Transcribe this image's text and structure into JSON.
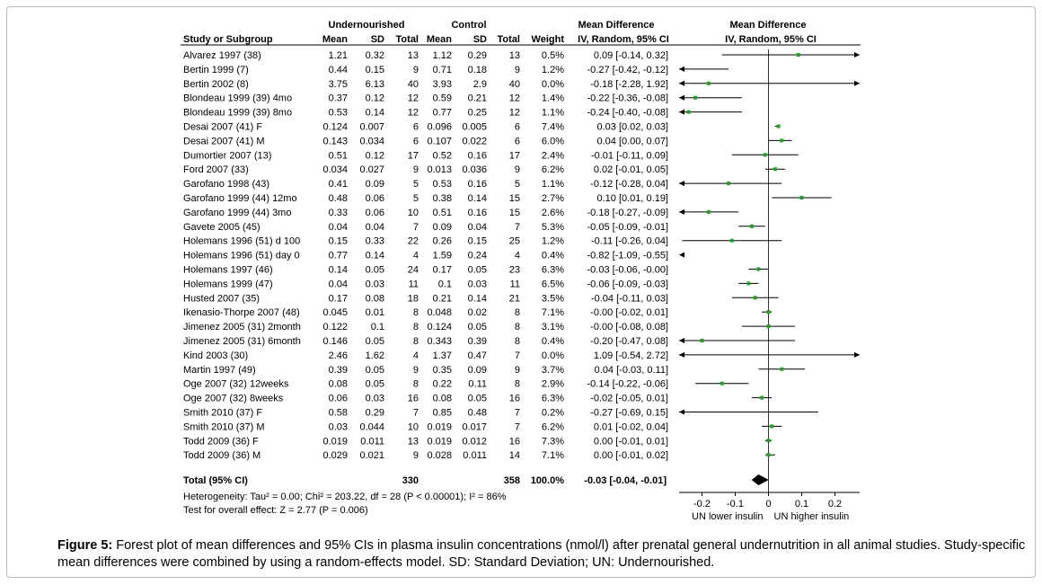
{
  "chart_data": {
    "type": "forest",
    "headers": {
      "group1": "Undernourished",
      "group2": "Control",
      "md_top": "Mean Difference",
      "md_sub": "IV, Random, 95% CI",
      "study": "Study or Subgroup",
      "mean": "Mean",
      "sd": "SD",
      "total": "Total",
      "weight": "Weight"
    },
    "studies": [
      {
        "name": "Alvarez 1997 (38)",
        "m1": "1.21",
        "sd1": "0.32",
        "n1": "13",
        "m2": "1.12",
        "sd2": "0.29",
        "n2": "13",
        "weight": "0.5%",
        "ci_text": "0.09 [-0.14, 0.32]",
        "md": 0.09,
        "lo": -0.14,
        "hi": 0.32
      },
      {
        "name": "Bertin 1999 (7)",
        "m1": "0.44",
        "sd1": "0.15",
        "n1": "9",
        "m2": "0.71",
        "sd2": "0.18",
        "n2": "9",
        "weight": "1.2%",
        "ci_text": "-0.27 [-0.42, -0.12]",
        "md": -0.27,
        "lo": -0.42,
        "hi": -0.12
      },
      {
        "name": "Bertin 2002 (8)",
        "m1": "3.75",
        "sd1": "6.13",
        "n1": "40",
        "m2": "3.93",
        "sd2": "2.9",
        "n2": "40",
        "weight": "0.0%",
        "ci_text": "-0.18 [-2.28, 1.92]",
        "md": -0.18,
        "lo": -2.28,
        "hi": 1.92
      },
      {
        "name": "Blondeau 1999 (39) 4mo",
        "m1": "0.37",
        "sd1": "0.12",
        "n1": "12",
        "m2": "0.59",
        "sd2": "0.21",
        "n2": "12",
        "weight": "1.4%",
        "ci_text": "-0.22 [-0.36, -0.08]",
        "md": -0.22,
        "lo": -0.36,
        "hi": -0.08
      },
      {
        "name": "Blondeau 1999 (39) 8mo",
        "m1": "0.53",
        "sd1": "0.14",
        "n1": "12",
        "m2": "0.77",
        "sd2": "0.25",
        "n2": "12",
        "weight": "1.1%",
        "ci_text": "-0.24 [-0.40, -0.08]",
        "md": -0.24,
        "lo": -0.4,
        "hi": -0.08
      },
      {
        "name": "Desai 2007 (41) F",
        "m1": "0.124",
        "sd1": "0.007",
        "n1": "6",
        "m2": "0.096",
        "sd2": "0.005",
        "n2": "6",
        "weight": "7.4%",
        "ci_text": "0.03 [0.02, 0.03]",
        "md": 0.03,
        "lo": 0.02,
        "hi": 0.03
      },
      {
        "name": "Desai 2007 (41) M",
        "m1": "0.143",
        "sd1": "0.034",
        "n1": "6",
        "m2": "0.107",
        "sd2": "0.022",
        "n2": "6",
        "weight": "6.0%",
        "ci_text": "0.04 [0.00, 0.07]",
        "md": 0.04,
        "lo": 0.0,
        "hi": 0.07
      },
      {
        "name": "Dumortier 2007 (13)",
        "m1": "0.51",
        "sd1": "0.12",
        "n1": "17",
        "m2": "0.52",
        "sd2": "0.16",
        "n2": "17",
        "weight": "2.4%",
        "ci_text": "-0.01 [-0.11, 0.09]",
        "md": -0.01,
        "lo": -0.11,
        "hi": 0.09
      },
      {
        "name": "Ford 2007 (33)",
        "m1": "0.034",
        "sd1": "0.027",
        "n1": "9",
        "m2": "0.013",
        "sd2": "0.036",
        "n2": "9",
        "weight": "6.2%",
        "ci_text": "0.02 [-0.01, 0.05]",
        "md": 0.02,
        "lo": -0.01,
        "hi": 0.05
      },
      {
        "name": "Garofano 1998 (43)",
        "m1": "0.41",
        "sd1": "0.09",
        "n1": "5",
        "m2": "0.53",
        "sd2": "0.16",
        "n2": "5",
        "weight": "1.1%",
        "ci_text": "-0.12 [-0.28, 0.04]",
        "md": -0.12,
        "lo": -0.28,
        "hi": 0.04
      },
      {
        "name": "Garofano 1999 (44) 12mo",
        "m1": "0.48",
        "sd1": "0.06",
        "n1": "5",
        "m2": "0.38",
        "sd2": "0.14",
        "n2": "15",
        "weight": "2.7%",
        "ci_text": "0.10 [0.01, 0.19]",
        "md": 0.1,
        "lo": 0.01,
        "hi": 0.19
      },
      {
        "name": "Garofano 1999 (44) 3mo",
        "m1": "0.33",
        "sd1": "0.06",
        "n1": "10",
        "m2": "0.51",
        "sd2": "0.16",
        "n2": "15",
        "weight": "2.6%",
        "ci_text": "-0.18 [-0.27, -0.09]",
        "md": -0.18,
        "lo": -0.27,
        "hi": -0.09
      },
      {
        "name": "Gavete 2005 (45)",
        "m1": "0.04",
        "sd1": "0.04",
        "n1": "7",
        "m2": "0.09",
        "sd2": "0.04",
        "n2": "7",
        "weight": "5.3%",
        "ci_text": "-0.05 [-0.09, -0.01]",
        "md": -0.05,
        "lo": -0.09,
        "hi": -0.01
      },
      {
        "name": "Holemans 1996 (51) d 100",
        "m1": "0.15",
        "sd1": "0.33",
        "n1": "22",
        "m2": "0.26",
        "sd2": "0.15",
        "n2": "25",
        "weight": "1.2%",
        "ci_text": "-0.11 [-0.26, 0.04]",
        "md": -0.11,
        "lo": -0.26,
        "hi": 0.04
      },
      {
        "name": "Holemans 1996 (51) day 0",
        "m1": "0.77",
        "sd1": "0.14",
        "n1": "4",
        "m2": "1.59",
        "sd2": "0.24",
        "n2": "4",
        "weight": "0.4%",
        "ci_text": "-0.82 [-1.09, -0.55]",
        "md": -0.82,
        "lo": -1.09,
        "hi": -0.55
      },
      {
        "name": "Holemans 1997 (46)",
        "m1": "0.14",
        "sd1": "0.05",
        "n1": "24",
        "m2": "0.17",
        "sd2": "0.05",
        "n2": "23",
        "weight": "6.3%",
        "ci_text": "-0.03 [-0.06, -0.00]",
        "md": -0.03,
        "lo": -0.06,
        "hi": -0.0
      },
      {
        "name": "Holemans 1999 (47)",
        "m1": "0.04",
        "sd1": "0.03",
        "n1": "11",
        "m2": "0.1",
        "sd2": "0.03",
        "n2": "11",
        "weight": "6.5%",
        "ci_text": "-0.06 [-0.09, -0.03]",
        "md": -0.06,
        "lo": -0.09,
        "hi": -0.03
      },
      {
        "name": "Husted 2007 (35)",
        "m1": "0.17",
        "sd1": "0.08",
        "n1": "18",
        "m2": "0.21",
        "sd2": "0.14",
        "n2": "21",
        "weight": "3.5%",
        "ci_text": "-0.04 [-0.11, 0.03]",
        "md": -0.04,
        "lo": -0.11,
        "hi": 0.03
      },
      {
        "name": "Ikenasio-Thorpe 2007 (48)",
        "m1": "0.045",
        "sd1": "0.01",
        "n1": "8",
        "m2": "0.048",
        "sd2": "0.02",
        "n2": "8",
        "weight": "7.1%",
        "ci_text": "-0.00 [-0.02, 0.01]",
        "md": -0.0,
        "lo": -0.02,
        "hi": 0.01
      },
      {
        "name": "Jimenez 2005 (31) 2month",
        "m1": "0.122",
        "sd1": "0.1",
        "n1": "8",
        "m2": "0.124",
        "sd2": "0.05",
        "n2": "8",
        "weight": "3.1%",
        "ci_text": "-0.00 [-0.08, 0.08]",
        "md": -0.0,
        "lo": -0.08,
        "hi": 0.08
      },
      {
        "name": "Jimenez 2005 (31) 6month",
        "m1": "0.146",
        "sd1": "0.05",
        "n1": "8",
        "m2": "0.343",
        "sd2": "0.39",
        "n2": "8",
        "weight": "0.4%",
        "ci_text": "-0.20 [-0.47, 0.08]",
        "md": -0.2,
        "lo": -0.47,
        "hi": 0.08
      },
      {
        "name": "Kind 2003 (30)",
        "m1": "2.46",
        "sd1": "1.62",
        "n1": "4",
        "m2": "1.37",
        "sd2": "0.47",
        "n2": "7",
        "weight": "0.0%",
        "ci_text": "1.09 [-0.54, 2.72]",
        "md": 1.09,
        "lo": -0.54,
        "hi": 2.72
      },
      {
        "name": "Martin 1997 (49)",
        "m1": "0.39",
        "sd1": "0.05",
        "n1": "9",
        "m2": "0.35",
        "sd2": "0.09",
        "n2": "9",
        "weight": "3.7%",
        "ci_text": "0.04 [-0.03, 0.11]",
        "md": 0.04,
        "lo": -0.03,
        "hi": 0.11
      },
      {
        "name": "Oge 2007 (32) 12weeks",
        "m1": "0.08",
        "sd1": "0.05",
        "n1": "8",
        "m2": "0.22",
        "sd2": "0.11",
        "n2": "8",
        "weight": "2.9%",
        "ci_text": "-0.14 [-0.22, -0.06]",
        "md": -0.14,
        "lo": -0.22,
        "hi": -0.06
      },
      {
        "name": "Oge 2007 (32) 8weeks",
        "m1": "0.06",
        "sd1": "0.03",
        "n1": "16",
        "m2": "0.08",
        "sd2": "0.05",
        "n2": "16",
        "weight": "6.3%",
        "ci_text": "-0.02 [-0.05, 0.01]",
        "md": -0.02,
        "lo": -0.05,
        "hi": 0.01
      },
      {
        "name": "Smith 2010 (37) F",
        "m1": "0.58",
        "sd1": "0.29",
        "n1": "7",
        "m2": "0.85",
        "sd2": "0.48",
        "n2": "7",
        "weight": "0.2%",
        "ci_text": "-0.27 [-0.69, 0.15]",
        "md": -0.27,
        "lo": -0.69,
        "hi": 0.15
      },
      {
        "name": "Smith 2010 (37) M",
        "m1": "0.03",
        "sd1": "0.044",
        "n1": "10",
        "m2": "0.019",
        "sd2": "0.017",
        "n2": "7",
        "weight": "6.2%",
        "ci_text": "0.01 [-0.02, 0.04]",
        "md": 0.01,
        "lo": -0.02,
        "hi": 0.04
      },
      {
        "name": "Todd 2009 (36) F",
        "m1": "0.019",
        "sd1": "0.011",
        "n1": "13",
        "m2": "0.019",
        "sd2": "0.012",
        "n2": "16",
        "weight": "7.3%",
        "ci_text": "0.00 [-0.01, 0.01]",
        "md": 0.0,
        "lo": -0.01,
        "hi": 0.01
      },
      {
        "name": "Todd 2009 (36) M",
        "m1": "0.029",
        "sd1": "0.021",
        "n1": "9",
        "m2": "0.028",
        "sd2": "0.011",
        "n2": "14",
        "weight": "7.1%",
        "ci_text": "0.00 [-0.01, 0.02]",
        "md": 0.0,
        "lo": -0.01,
        "hi": 0.02
      }
    ],
    "total": {
      "label": "Total (95% CI)",
      "n1": "330",
      "n2": "358",
      "weight": "100.0%",
      "ci_text": "-0.03 [-0.04, -0.01]",
      "md": -0.03,
      "lo": -0.04,
      "hi": -0.01
    },
    "heterogeneity": "Heterogeneity: Tau² = 0.00; Chi² = 203.22, df = 28 (P < 0.00001); I² = 86%",
    "overall_test": "Test for overall effect: Z = 2.77 (P = 0.006)",
    "axis": {
      "xlim": [
        -0.27,
        0.27
      ],
      "ticks": [
        -0.2,
        -0.1,
        0,
        0.1,
        0.2
      ],
      "tick_labels": [
        "-0.2",
        "-0.1",
        "0",
        "0.1",
        "0.2"
      ],
      "favours_left": "UN lower insulin",
      "favours_right": "UN higher insulin"
    },
    "colors": {
      "marker": "#22a022",
      "line": "#000000",
      "diamond": "#000000"
    }
  },
  "caption": {
    "label": "Figure 5:",
    "text": " Forest plot of mean differences and 95% CIs in plasma insulin concentrations (nmol/l) after prenatal general undernutrition in all animal studies. Study-specific mean differences were combined by using a random-effects model. SD: Standard Deviation; UN: Undernourished."
  }
}
